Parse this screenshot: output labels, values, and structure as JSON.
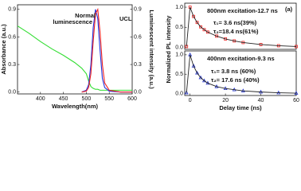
{
  "chart_data": [
    {
      "type": "line",
      "xlabel": "Wavelength(nm)",
      "ylabel": "Absorbance (a.u.)",
      "y2label": "Luminescent intensity (a.u.)",
      "annotations": [
        "Normal",
        "luminescence",
        "UCL"
      ],
      "x": [
        350,
        375,
        400,
        425,
        450,
        475,
        490,
        500,
        505,
        510,
        515,
        520,
        525,
        530,
        535,
        540,
        550,
        575,
        600
      ],
      "series": [
        {
          "color": "#33dd33",
          "values": [
            0.72,
            0.64,
            0.55,
            0.47,
            0.4,
            0.32,
            0.26,
            0.2,
            0.12,
            0.06,
            0.04,
            0.03,
            0.03,
            0.02,
            0.02,
            0.02,
            0.02,
            0.02,
            0.02
          ]
        },
        {
          "color": "#2233dd",
          "axis": "y2",
          "values": [
            null,
            null,
            null,
            null,
            null,
            null,
            0,
            0.02,
            0.08,
            0.3,
            0.7,
            0.9,
            0.8,
            0.45,
            0.15,
            0.05,
            0.01,
            0,
            0
          ]
        },
        {
          "color": "#ee2222",
          "axis": "y2",
          "values": [
            null,
            null,
            null,
            null,
            null,
            null,
            0,
            0.01,
            0.05,
            0.2,
            0.55,
            0.85,
            0.9,
            0.65,
            0.3,
            0.1,
            0.02,
            0,
            0
          ]
        }
      ],
      "xlim": [
        350,
        600
      ],
      "xticks": [
        400,
        450,
        500,
        550,
        600
      ],
      "ylim": [
        -0.02,
        0.95
      ],
      "yticks": [
        {
          "value": 0,
          "label": "0.0"
        },
        0.3,
        0.6,
        0.9
      ],
      "y2lim": [
        -0.02,
        0.95
      ],
      "y2ticks": [
        {
          "value": 0,
          "label": "0.0"
        },
        0.3,
        0.6,
        0.9
      ]
    },
    {
      "type": "decay",
      "ylabel": "Normalized PL intensity",
      "panel_label": "(a)",
      "label": "800nm excitation-12.7 ns",
      "annotations": [
        "τ₁= 3.6 ns(39%)",
        "τ₂=18.4 ns(61%)"
      ],
      "x": [
        -2,
        0,
        2,
        4,
        6,
        8,
        10,
        15,
        20,
        25,
        30,
        40,
        50,
        60
      ],
      "series": [
        {
          "color": "#ee2222",
          "line_color": "#222222",
          "marker": "square",
          "values": [
            0.02,
            1.0,
            0.77,
            0.62,
            0.51,
            0.44,
            0.38,
            0.28,
            0.21,
            0.16,
            0.12,
            0.07,
            0.04,
            0.02
          ]
        }
      ],
      "xlim": [
        -3,
        60
      ],
      "ylim": [
        -0.05,
        1.1
      ],
      "yticks": [
        {
          "value": 0,
          "label": "0.0"
        },
        0.5,
        {
          "value": 1,
          "label": "1.0"
        }
      ]
    },
    {
      "type": "decay",
      "xlabel": "Delay time (ns)",
      "label": "400nm excitation-9.3 ns",
      "annotations": [
        "τ₁= 3.8 ns (60%)",
        "τ₂= 17.6 ns (40%)"
      ],
      "x": [
        -2,
        0,
        2,
        4,
        6,
        8,
        10,
        15,
        20,
        25,
        30,
        40,
        50,
        60
      ],
      "series": [
        {
          "color": "#2233cc",
          "line_color": "#222222",
          "marker": "triangle",
          "values": [
            0.02,
            1.0,
            0.71,
            0.53,
            0.41,
            0.33,
            0.27,
            0.18,
            0.13,
            0.1,
            0.07,
            0.04,
            0.02,
            0.01
          ]
        }
      ],
      "xlim": [
        -3,
        60
      ],
      "xticks": [
        0,
        20,
        40,
        60
      ],
      "ylim": [
        -0.05,
        1.1
      ],
      "yticks": [
        {
          "value": 0,
          "label": "0.0"
        },
        0.5,
        {
          "value": 1,
          "label": "1.0"
        }
      ]
    }
  ]
}
